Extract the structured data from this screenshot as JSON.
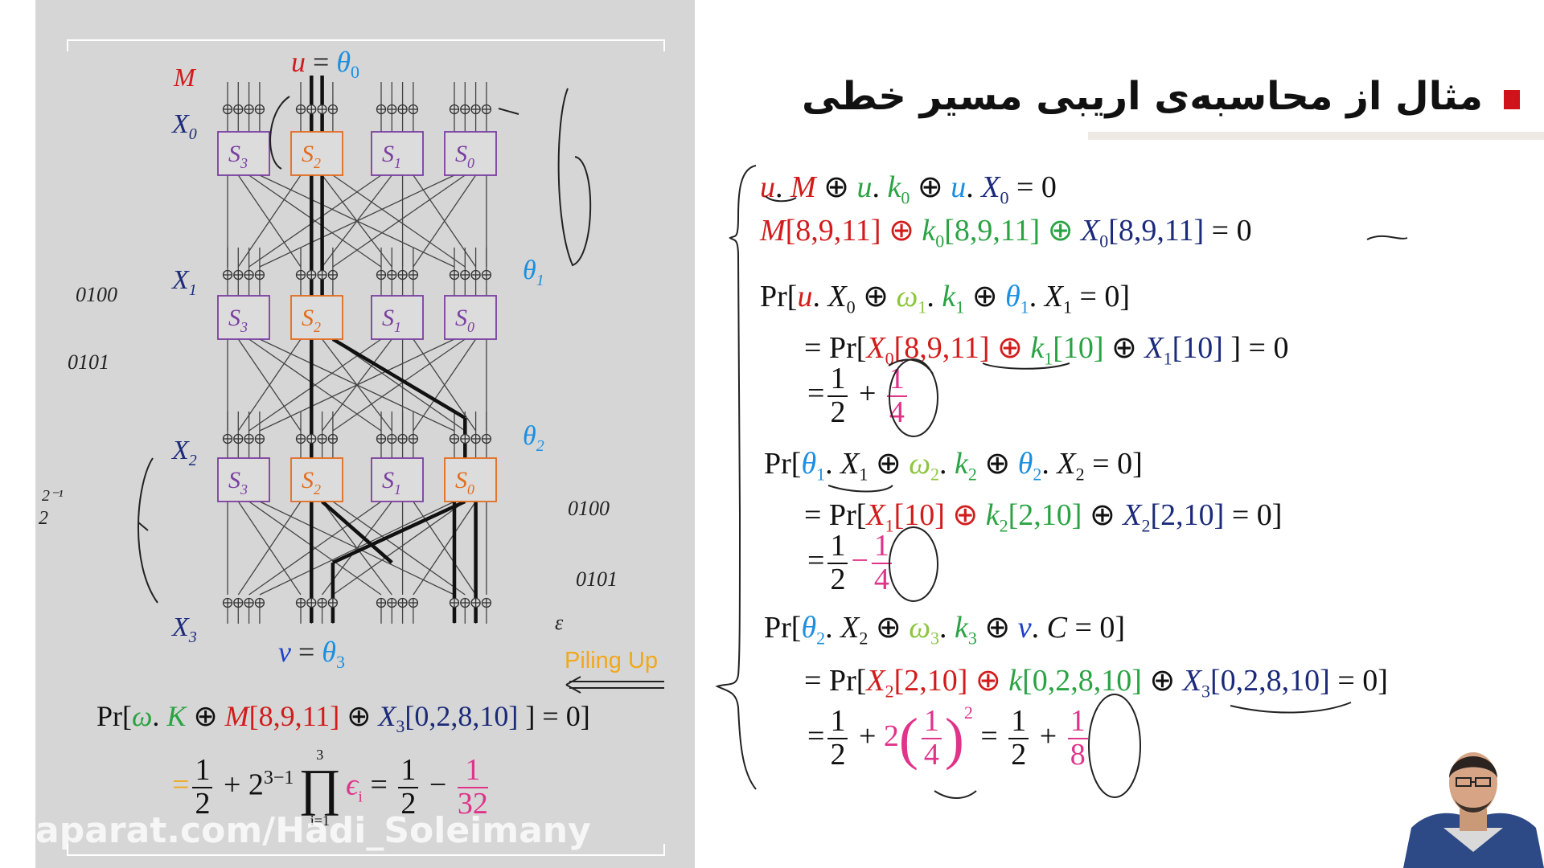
{
  "slide_title": "مثال از محاسبه‌ی اریبی مسیر خطی",
  "accent_color": "#d0131a",
  "piling_up_label": "Piling Up",
  "watermark": "aparat.com/Hadi_Soleimany",
  "diagram": {
    "top_label_M": "M",
    "top_u": "u",
    "top_eq": " = ",
    "top_theta": "θ",
    "top_theta_sub": "0",
    "bottom_v": "v",
    "bottom_eq": " = ",
    "bottom_theta": "θ",
    "bottom_theta_sub": "3",
    "row_labels": [
      {
        "name": "X",
        "sub": "0"
      },
      {
        "name": "X",
        "sub": "1"
      },
      {
        "name": "X",
        "sub": "2"
      },
      {
        "name": "X",
        "sub": "3"
      }
    ],
    "theta_labels": [
      {
        "name": "θ",
        "sub": "1"
      },
      {
        "name": "θ",
        "sub": "2"
      }
    ],
    "sbox_rows": [
      [
        "S3",
        "S2",
        "S1",
        "S0"
      ],
      [
        "S3",
        "S2",
        "S1",
        "S0"
      ],
      [
        "S3",
        "S2",
        "S1",
        "S0"
      ]
    ]
  },
  "handwritten_notes": {
    "left_a": "0100",
    "left_b": "0101",
    "left_c": "2⁻¹",
    "left_d": "2",
    "right_a": "0100",
    "right_b": "0101",
    "right_c": "ε"
  },
  "left_formula": {
    "line1": {
      "pr": "Pr[",
      "omega": "ω",
      "dot1": ". ",
      "K": "K",
      "xor1": " ⊕ ",
      "M": "M",
      "M_idx": "[8,9,11]",
      "xor2": " ⊕ ",
      "X": "X",
      "X_sub": "3",
      "X_idx": "[0,2,8,10]",
      "end": " ] = 0]"
    },
    "line2": {
      "eq": "=",
      "half_num": "1",
      "half_den": "2",
      "plus": " + 2",
      "exp": "3−1",
      "prod": "∏",
      "prod_top": "3",
      "prod_bottom": "i=1",
      "eps": "ϵ",
      "eps_sub": "i",
      "eq2": " = ",
      "half2_num": "1",
      "half2_den": "2",
      "minus": " − ",
      "result_num": "1",
      "result_den": "32"
    }
  },
  "right_formulas": {
    "e1": {
      "u1": "u",
      "d1": ". ",
      "M": "M",
      "x1": " ⊕ ",
      "u2": "u",
      "d2": ". ",
      "k": "k",
      "k_sub": "0",
      "x2": " ⊕ ",
      "u3": "u",
      "d3": ". ",
      "X": "X",
      "X_sub": "0",
      "end": " = 0"
    },
    "e2": {
      "M": "M",
      "M_idx": "[8,9,11]",
      "x1": " ⊕ ",
      "k": "k",
      "k_sub": "0",
      "k_idx": "[8,9,11]",
      "x2": " ⊕ ",
      "X": "X",
      "X_sub": "0",
      "X_idx": "[8,9,11]",
      "end": " = 0"
    },
    "e3": {
      "pr": "Pr[",
      "u": "u",
      "d1": ". ",
      "X": "X",
      "X_sub": "0",
      "x1": " ⊕ ",
      "w": "ω",
      "w_sub": "1",
      "d2": ". ",
      "k": "k",
      "k_sub": "1",
      "x2": " ⊕ ",
      "t": "θ",
      "t_sub": "1",
      "d3": ". ",
      "X2": "X",
      "X2_sub": "1",
      "end": " = 0]"
    },
    "e4": {
      "pre": "= Pr[",
      "X": "X",
      "X_sub": "0",
      "X_idx": "[8,9,11]",
      "x1": " ⊕ ",
      "k": "k",
      "k_sub": "1",
      "k_idx": "[10]",
      "x2": " ⊕ ",
      "X2": "X",
      "X2_sub": "1",
      "X2_idx": "[10]",
      "end": " ] = 0"
    },
    "e5": {
      "eq": "=",
      "n1": "1",
      "d1": "2",
      "op": " + ",
      "n2": "1",
      "d2": "4"
    },
    "e6": {
      "pr": "Pr[",
      "t": "θ",
      "t_sub": "1",
      "d1": ". ",
      "X": "X",
      "X_sub": "1",
      "x1": " ⊕ ",
      "w": "ω",
      "w_sub": "2",
      "d2": ". ",
      "k": "k",
      "k_sub": "2",
      "x2": " ⊕ ",
      "t2": "θ",
      "t2_sub": "2",
      "d3": ". ",
      "X2": "X",
      "X2_sub": "2",
      "end": " = 0]"
    },
    "e7": {
      "pre": "= Pr[",
      "X": "X",
      "X_sub": "1",
      "X_idx": "[10]",
      "x1": " ⊕ ",
      "k": "k",
      "k_sub": "2",
      "k_idx": "[2,10]",
      "x2": " ⊕ ",
      "X2": "X",
      "X2_sub": "2",
      "X2_idx": "[2,10]",
      "end": " = 0]"
    },
    "e8": {
      "eq": "=",
      "n1": "1",
      "d1": "2",
      "op": "−",
      "n2": "1",
      "d2": "4"
    },
    "e9": {
      "pr": "Pr[",
      "t": "θ",
      "t_sub": "2",
      "d1": ". ",
      "X": "X",
      "X_sub": "2",
      "x1": " ⊕ ",
      "w": "ω",
      "w_sub": "3",
      "d2": ". ",
      "k": "k",
      "k_sub": "3",
      "x2": " ⊕ ",
      "v": "v",
      "d3": ". ",
      "C": "C",
      "end": " = 0]"
    },
    "e10": {
      "pre": "= Pr[",
      "X": "X",
      "X_sub": "2",
      "X_idx": "[2,10]",
      "x1": " ⊕ ",
      "k": "k",
      "k_idx": "[0,2,8,10]",
      "x2": " ⊕ ",
      "X2": "X",
      "X2_sub": "3",
      "X2_idx": "[0,2,8,10]",
      "end": " = 0]"
    },
    "e11": {
      "eq": "=",
      "n1": "1",
      "d1": "2",
      "plus": " + ",
      "coef": "2",
      "pn": "1",
      "pd": "4",
      "pow": "2",
      "eq2": " = ",
      "n3": "1",
      "d3": "2",
      "plus2": " + ",
      "n4": "1",
      "d4": "8"
    }
  }
}
